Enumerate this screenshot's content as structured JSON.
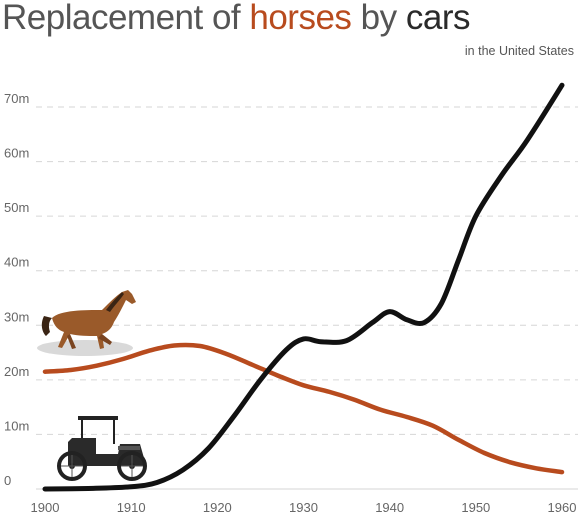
{
  "title": {
    "prefix": "Replacement of ",
    "horses": "horses",
    "middle": " by ",
    "cars": "cars"
  },
  "subtitle": "in the United States",
  "colors": {
    "horses": "#b84b1e",
    "cars": "#111111",
    "grid": "#d6d6d6",
    "text": "#555555"
  },
  "icons": [
    "horse-icon",
    "car-icon"
  ],
  "chart_data": {
    "type": "line",
    "xlim": [
      1900,
      1960
    ],
    "ylim": [
      0,
      75
    ],
    "x_ticks": [
      1900,
      1910,
      1920,
      1930,
      1940,
      1950,
      1960
    ],
    "x_tick_labels": [
      "1900",
      "1910",
      "1920",
      "1930",
      "1940",
      "1950",
      "1960"
    ],
    "y_ticks": [
      0,
      10,
      20,
      30,
      40,
      50,
      60,
      70
    ],
    "y_tick_labels": [
      "0",
      "10m",
      "20m",
      "30m",
      "40m",
      "50m",
      "60m",
      "70m"
    ],
    "grid": true,
    "series": [
      {
        "id": "horses",
        "x": [
          1900,
          1903,
          1906,
          1909,
          1912,
          1915,
          1918,
          1921,
          1924,
          1927,
          1930,
          1933,
          1936,
          1939,
          1942,
          1945,
          1948,
          1951,
          1954,
          1957,
          1960
        ],
        "values": [
          21.5,
          21.8,
          22.6,
          23.8,
          25.3,
          26.3,
          26.2,
          24.8,
          22.8,
          20.8,
          19.0,
          17.8,
          16.3,
          14.5,
          13.2,
          11.6,
          9.0,
          6.6,
          4.9,
          3.8,
          3.1
        ]
      },
      {
        "id": "cars",
        "x": [
          1900,
          1905,
          1910,
          1913,
          1916,
          1919,
          1922,
          1925,
          1928,
          1930,
          1932,
          1935,
          1938,
          1940,
          1942,
          1944,
          1946,
          1948,
          1950,
          1953,
          1956,
          1960
        ],
        "values": [
          0,
          0.1,
          0.4,
          1.2,
          3.5,
          7.5,
          13.5,
          20.0,
          25.5,
          27.5,
          27.0,
          27.2,
          30.5,
          32.5,
          31.0,
          30.5,
          34.0,
          42.0,
          50.0,
          57.5,
          64.0,
          74.0
        ]
      }
    ]
  }
}
